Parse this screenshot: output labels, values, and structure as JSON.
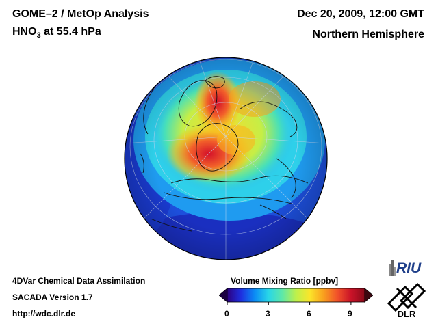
{
  "header": {
    "title_line1": "GOME–2 / MetOp Analysis",
    "species_base": "HNO",
    "species_subscript": "3",
    "species_level": " at 55.4 hPa",
    "datetime": "Dec 20, 2009, 12:00 GMT",
    "region": "Northern Hemisphere"
  },
  "footer": {
    "line1": "4DVar Chemical Data Assimilation",
    "line2": "SACADA Version 1.7",
    "line3": "http://wdc.dlr.de"
  },
  "colorbar": {
    "title": "Volume Mixing Ratio [ppbv]",
    "ticks": [
      "0",
      "3",
      "6",
      "9"
    ],
    "min": 0,
    "max": 10,
    "colors": [
      "#2c0080",
      "#1e2fe0",
      "#0b8cf5",
      "#28d6e8",
      "#5ee8a8",
      "#bdf04c",
      "#fbe52a",
      "#f9a01e",
      "#f1522a",
      "#ca1328",
      "#8a0a1a"
    ]
  },
  "logos": {
    "riu": "RIU",
    "dlr": "DLR"
  },
  "map": {
    "projection": "orthographic, north polar view",
    "ocean_background_color": "#3f8fe6"
  }
}
